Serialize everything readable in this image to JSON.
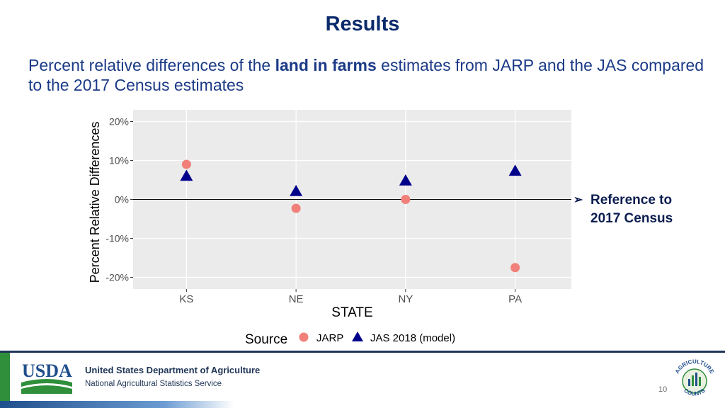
{
  "slide": {
    "title": "Results",
    "subtitle_pre": "Percent relative differences of the ",
    "subtitle_bold": "land in farms",
    "subtitle_post": " estimates from JARP and the JAS compared to the 2017 Census estimates",
    "annotation_line1": "Reference to",
    "annotation_line2": "2017 Census",
    "page_number": "10"
  },
  "footer": {
    "logo_text": "USDA",
    "department": "United States Department of Agriculture",
    "agency": "National Agricultural Statistics Service",
    "seal_text_top": "AGRICULTURE",
    "seal_text_bottom": "COUNTS"
  },
  "colors": {
    "jarp": "#f08079",
    "jas": "#00008b",
    "panel": "#ebebeb",
    "title": "#0b2a6b",
    "usda_blue": "#1f4e8c",
    "usda_green": "#2f8f3a"
  },
  "chart_data": {
    "type": "scatter",
    "categories": [
      "KS",
      "NE",
      "NY",
      "PA"
    ],
    "series": [
      {
        "name": "JARP",
        "values": [
          9.0,
          -2.3,
          0.0,
          -17.5
        ],
        "color": "#f08079",
        "marker": "circle"
      },
      {
        "name": "JAS 2018 (model)",
        "values": [
          6.0,
          2.1,
          4.8,
          7.3
        ],
        "color": "#00008b",
        "marker": "triangle"
      }
    ],
    "xlabel": "STATE",
    "ylabel": "Percent Relative Differences",
    "ylim": [
      -23,
      23
    ],
    "yticks": [
      -20,
      -10,
      0,
      10,
      20
    ],
    "ytick_labels": [
      "-20%",
      "-10%",
      "0%",
      "10%",
      "20%"
    ],
    "reference_line": 0,
    "legend_title": "Source",
    "legend_position": "bottom",
    "grid": true
  }
}
